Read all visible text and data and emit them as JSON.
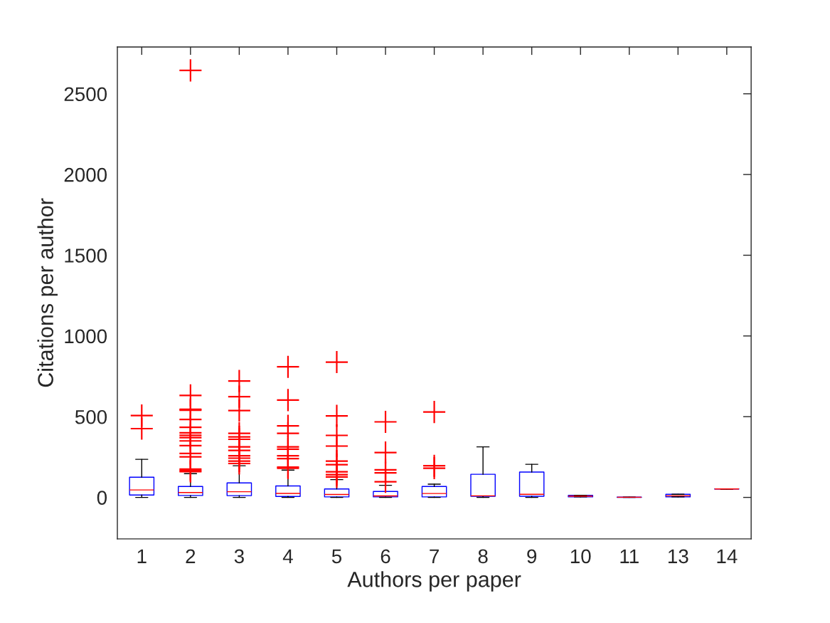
{
  "chart_data": {
    "type": "box",
    "xlabel": "Authors per paper",
    "ylabel": "Citations per author",
    "categories": [
      "1",
      "2",
      "3",
      "4",
      "5",
      "6",
      "7",
      "8",
      "9",
      "10",
      "11",
      "13",
      "14"
    ],
    "color": "#0000ff",
    "marker": "cross",
    "grid": false,
    "ylim": [
      -257,
      2790
    ],
    "yticks": [
      0,
      500,
      1000,
      1500,
      2000,
      2500
    ],
    "boxes": [
      {
        "low": 0,
        "q1": 15,
        "median": 46,
        "q3": 125,
        "high": 236,
        "outliers": [
          507,
          426
        ]
      },
      {
        "low": 0,
        "q1": 12,
        "median": 30,
        "q3": 68,
        "high": 147,
        "outliers": [
          2645,
          632,
          546,
          540,
          483,
          434,
          400,
          385,
          370,
          350,
          321,
          272,
          251,
          175,
          166,
          160
        ]
      },
      {
        "low": 0,
        "q1": 11,
        "median": 35,
        "q3": 90,
        "high": 196,
        "outliers": [
          721,
          624,
          538,
          397,
          375,
          360,
          313,
          291,
          258,
          243,
          225,
          210
        ]
      },
      {
        "low": 0,
        "q1": 6,
        "median": 25,
        "q3": 71,
        "high": 169,
        "outliers": [
          809,
          603,
          443,
          397,
          313,
          299,
          258,
          240,
          188,
          181
        ]
      },
      {
        "low": 0,
        "q1": 3,
        "median": 18,
        "q3": 52,
        "high": 110,
        "outliers": [
          838,
          505,
          384,
          318,
          225,
          203,
          159,
          141,
          127
        ]
      },
      {
        "low": 0,
        "q1": 3,
        "median": 9,
        "q3": 37,
        "high": 75,
        "outliers": [
          468,
          278,
          171,
          152,
          97
        ]
      },
      {
        "low": 0,
        "q1": 3,
        "median": 24,
        "q3": 68,
        "high": 82,
        "outliers": [
          529,
          196,
          181
        ]
      },
      {
        "low": 0,
        "q1": 7,
        "median": 10,
        "q3": 143,
        "high": 313
      },
      {
        "low": 0,
        "q1": 7,
        "median": 19,
        "q3": 157,
        "high": 205
      },
      {
        "low": 3,
        "q1": 3,
        "median": 8,
        "q3": 13,
        "high": 13
      },
      {
        "low": 0,
        "q1": 0,
        "median": 1,
        "q3": 2,
        "high": 2
      },
      {
        "low": 3,
        "q1": 3,
        "median": 10,
        "q3": 19,
        "high": 19
      },
      {
        "low": 52,
        "q1": 52,
        "median": 52,
        "q3": 52,
        "high": 52
      }
    ]
  }
}
